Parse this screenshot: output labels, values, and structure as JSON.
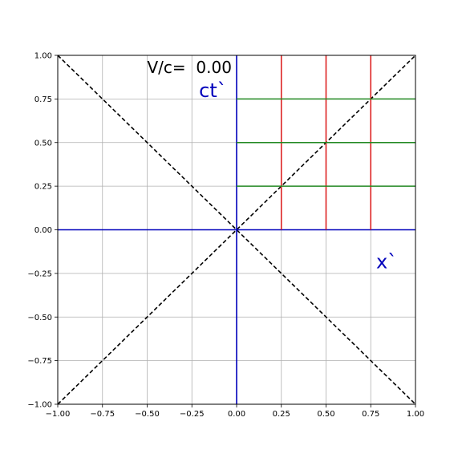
{
  "chart_data": {
    "type": "line",
    "title": "",
    "xlabel": "",
    "ylabel": "",
    "xlim": [
      -1.0,
      1.0
    ],
    "ylim": [
      -1.0,
      1.0
    ],
    "grid": true,
    "xticks": [
      -1.0,
      -0.75,
      -0.5,
      -0.25,
      0.0,
      0.25,
      0.5,
      0.75,
      1.0
    ],
    "yticks": [
      -1.0,
      -0.75,
      -0.5,
      -0.25,
      0.0,
      0.25,
      0.5,
      0.75,
      1.0
    ],
    "xtick_labels": [
      "−1.00",
      "−0.75",
      "−0.50",
      "−0.25",
      "0.00",
      "0.25",
      "0.50",
      "0.75",
      "1.00"
    ],
    "ytick_labels": [
      "−1.00",
      "−0.75",
      "−0.50",
      "−0.25",
      "0.00",
      "0.25",
      "0.50",
      "0.75",
      "1.00"
    ],
    "series": [
      {
        "role": "light-cone-diagonal",
        "color": "#000000",
        "dash": true,
        "x": [
          -1.0,
          1.0
        ],
        "y": [
          -1.0,
          1.0
        ]
      },
      {
        "role": "light-cone-antidiagonal",
        "color": "#000000",
        "dash": true,
        "x": [
          -1.0,
          1.0
        ],
        "y": [
          1.0,
          -1.0
        ]
      },
      {
        "role": "ct-prime-axis",
        "color": "#0000bb",
        "x": [
          0.0,
          0.0
        ],
        "y": [
          -1.0,
          1.0
        ]
      },
      {
        "role": "x-prime-axis",
        "color": "#0000bb",
        "x": [
          -1.0,
          1.0
        ],
        "y": [
          0.0,
          0.0
        ]
      },
      {
        "role": "worldline",
        "color": "#dd2222",
        "x": [
          0.25,
          0.25
        ],
        "y": [
          0.0,
          1.0
        ]
      },
      {
        "role": "worldline",
        "color": "#dd2222",
        "x": [
          0.5,
          0.5
        ],
        "y": [
          0.0,
          1.0
        ]
      },
      {
        "role": "worldline",
        "color": "#dd2222",
        "x": [
          0.75,
          0.75
        ],
        "y": [
          0.0,
          1.0
        ]
      },
      {
        "role": "simultaneity-line",
        "color": "#228822",
        "x": [
          0.0,
          1.0
        ],
        "y": [
          0.25,
          0.25
        ]
      },
      {
        "role": "simultaneity-line",
        "color": "#228822",
        "x": [
          0.0,
          1.0
        ],
        "y": [
          0.5,
          0.5
        ]
      },
      {
        "role": "simultaneity-line",
        "color": "#228822",
        "x": [
          0.0,
          1.0
        ],
        "y": [
          0.75,
          0.75
        ]
      }
    ],
    "annotations": [
      {
        "name": "velocity-label",
        "text": "V/c=  0.00",
        "x": -0.5,
        "y": 0.9,
        "color": "#000000"
      },
      {
        "name": "ct-prime-label",
        "text": "ct`",
        "x": -0.21,
        "y": 0.76,
        "color": "#0000bb"
      },
      {
        "name": "x-prime-label",
        "text": "x`",
        "x": 0.78,
        "y": -0.22,
        "color": "#0000bb"
      }
    ]
  }
}
